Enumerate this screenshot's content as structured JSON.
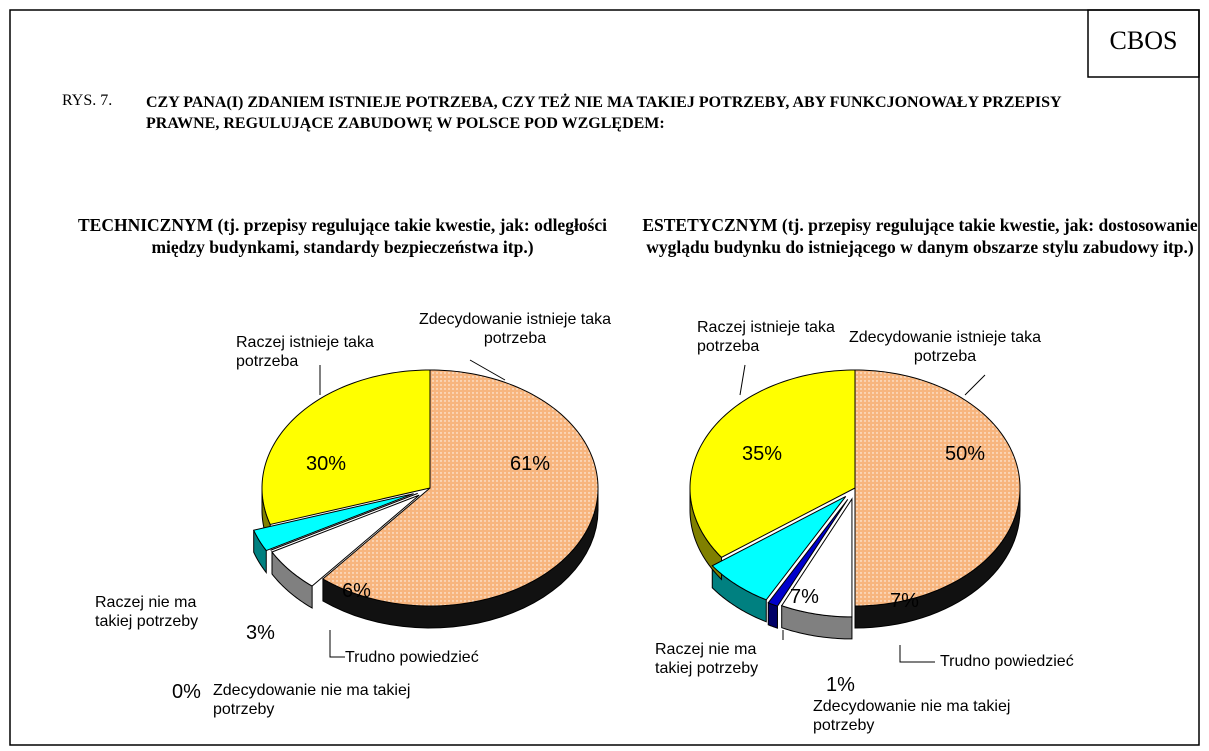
{
  "header": {
    "source": "CBOS",
    "figure": "RYS. 7.",
    "title": "CZY PANA(I) ZDANIEM ISTNIEJE POTRZEBA, CZY TEŻ NIE MA TAKIEJ POTRZEBY, ABY FUNKCJONOWAŁY PRZEPISY PRAWNE, REGULUJĄCE ZABUDOWĘ W POLSCE POD WZGLĘDEM:"
  },
  "chart_data": [
    {
      "type": "pie",
      "title": "TECHNICZNYM (tj. przepisy regulujące takie kwestie, jak: odległości między budynkami, standardy bezpieczeństwa itp.)",
      "categories": [
        "Zdecydowanie istnieje taka potrzeba",
        "Trudno powiedzieć",
        "Zdecydowanie nie ma takiej potrzeby",
        "Raczej nie ma takiej potrzeby",
        "Raczej istnieje taka potrzeba"
      ],
      "values": [
        61,
        6,
        0,
        3,
        30
      ],
      "value_labels": [
        "61%",
        "6%",
        "0%",
        "3%",
        "30%"
      ],
      "colors": [
        "#f7b57e",
        "#ffffff",
        "#0000cc",
        "#00ffff",
        "#ffff00"
      ]
    },
    {
      "type": "pie",
      "title": "ESTETYCZNYM (tj. przepisy regulujące takie kwestie, jak: dostosowanie wyglądu budynku do  istniejącego w danym obszarze stylu zabudowy itp.)",
      "categories": [
        "Zdecydowanie istnieje taka potrzeba",
        "Trudno powiedzieć",
        "Zdecydowanie nie ma takiej potrzeby",
        "Raczej nie ma takiej potrzeby",
        "Raczej istnieje taka potrzeba"
      ],
      "values": [
        50,
        7,
        1,
        7,
        35
      ],
      "value_labels": [
        "50%",
        "7%",
        "1%",
        "7%",
        "35%"
      ],
      "colors": [
        "#f7b57e",
        "#ffffff",
        "#0000cc",
        "#00ffff",
        "#ffff00"
      ]
    }
  ]
}
